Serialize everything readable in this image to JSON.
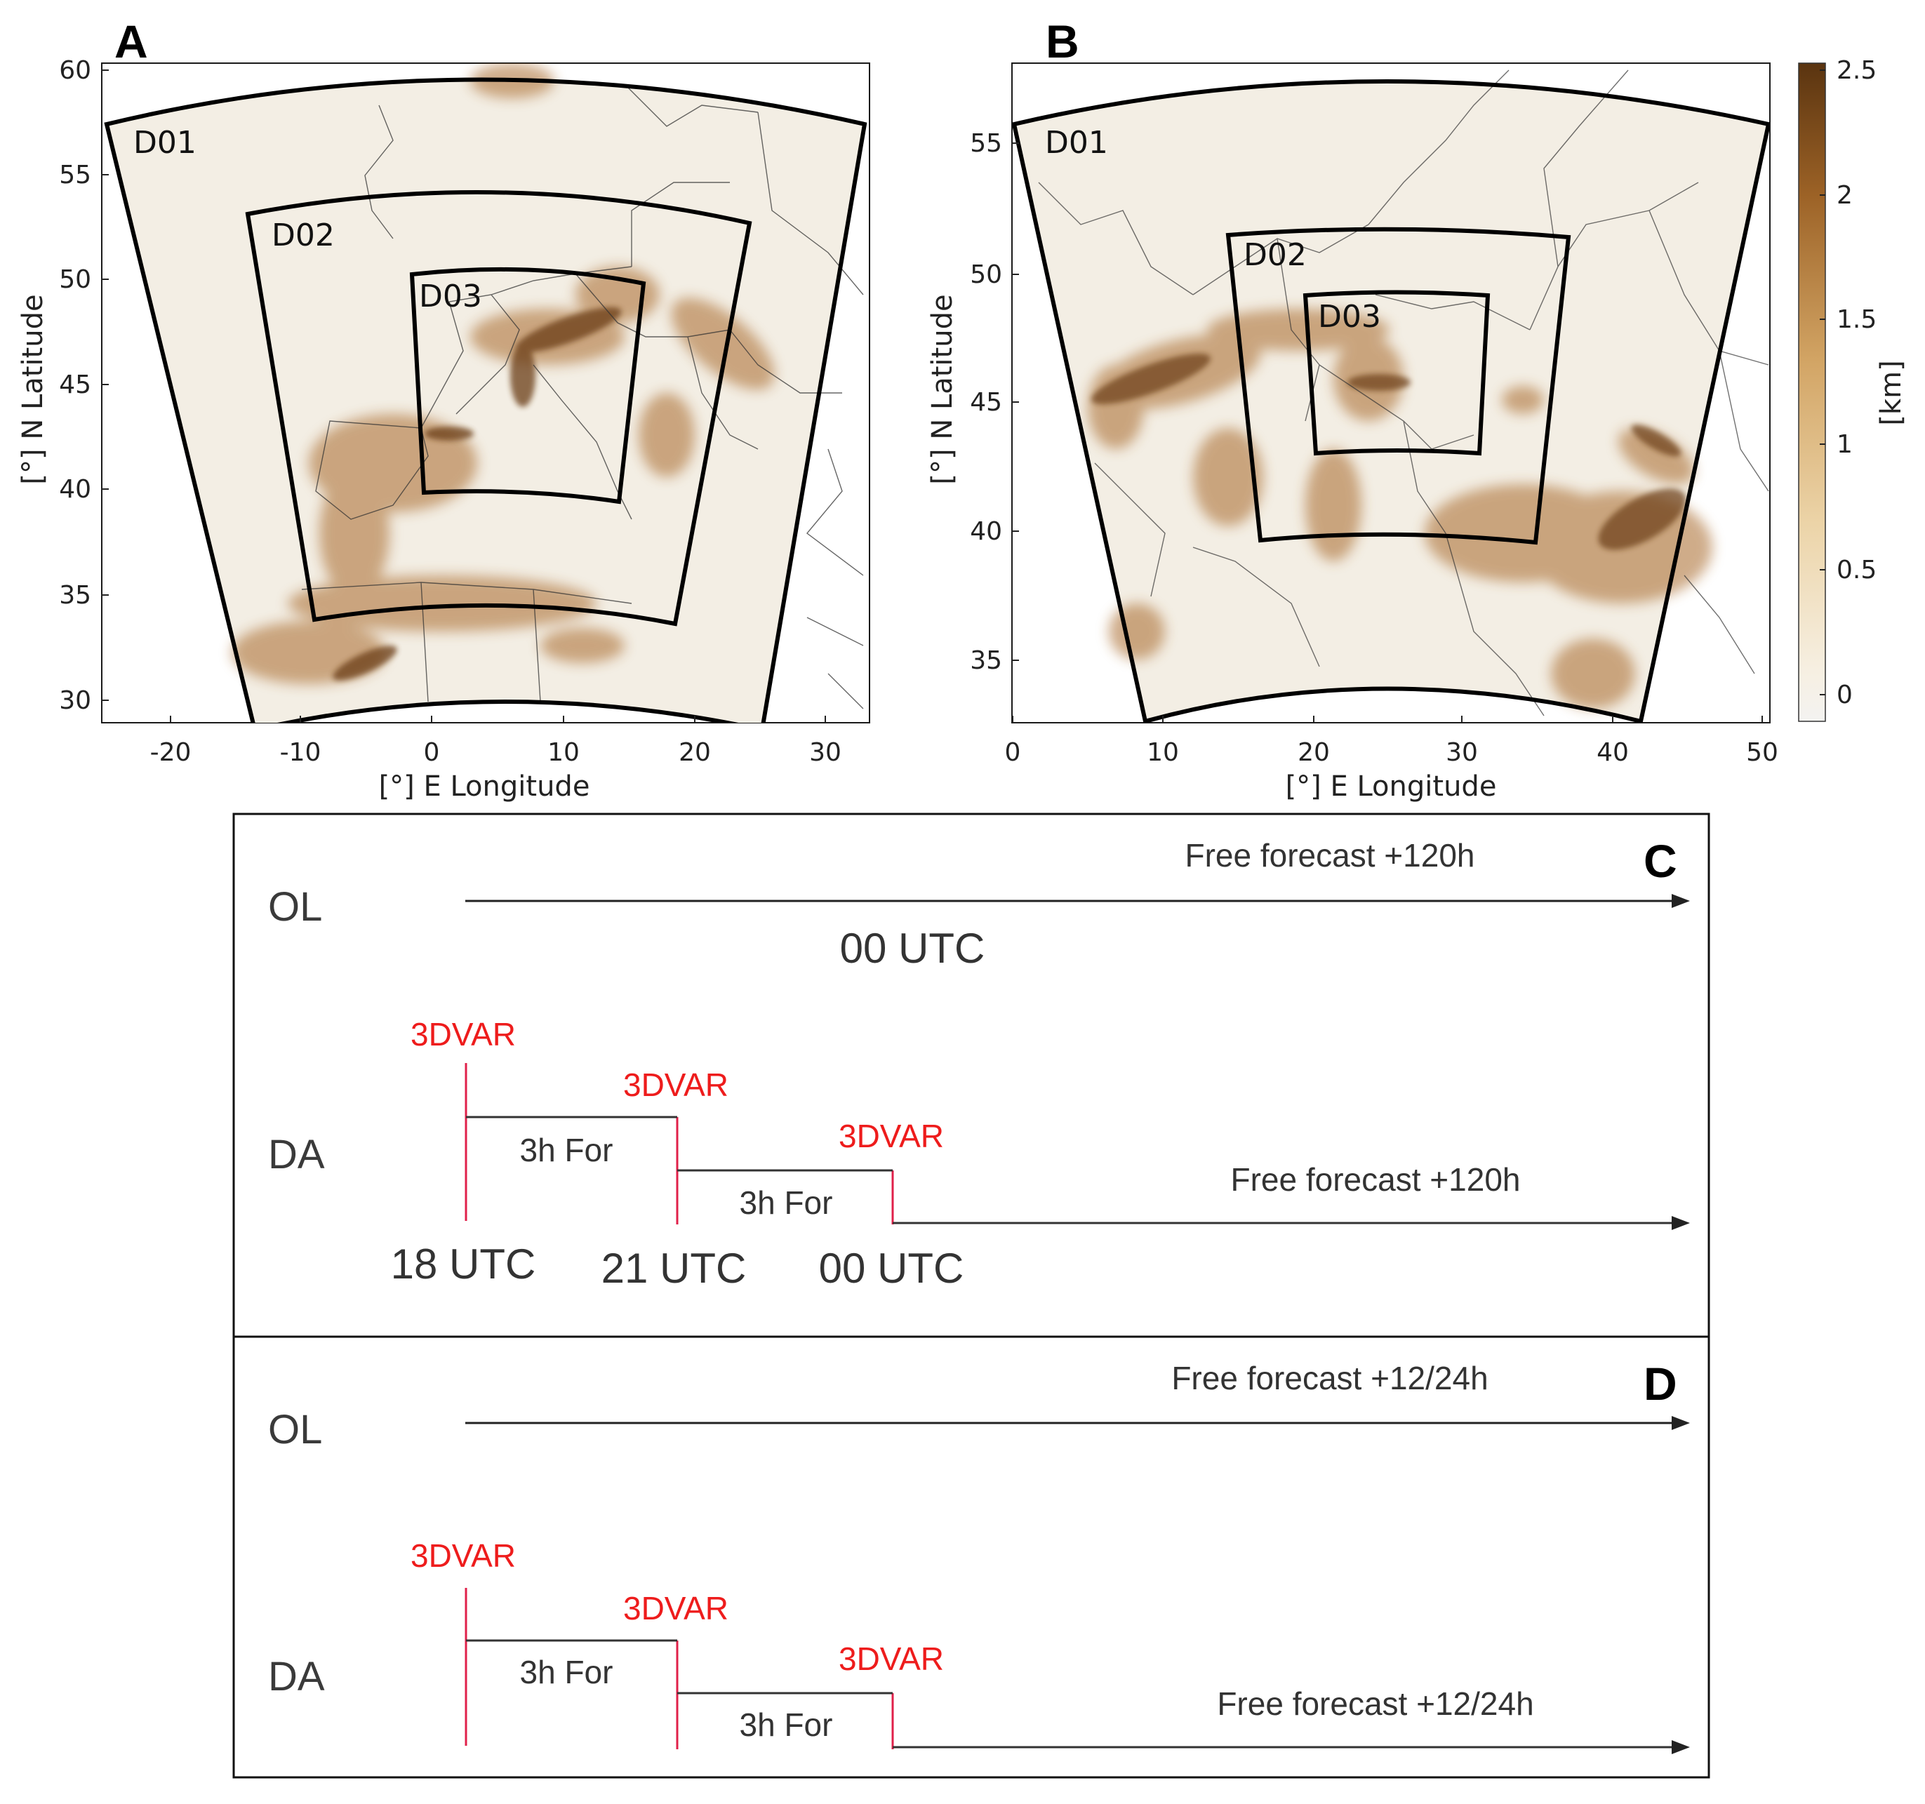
{
  "panelA": {
    "label": "A",
    "domains": [
      "D01",
      "D02",
      "D03"
    ],
    "x_ticks": [
      "-20",
      "-10",
      "0",
      "10",
      "20",
      "30"
    ],
    "y_ticks": [
      "60",
      "55",
      "50",
      "45",
      "40",
      "35",
      "30"
    ],
    "xlabel": "[°] E Longitude",
    "ylabel": "[°] N Latitude"
  },
  "panelB": {
    "label": "B",
    "domains": [
      "D01",
      "D02",
      "D03"
    ],
    "x_ticks": [
      "0",
      "10",
      "20",
      "30",
      "40",
      "50"
    ],
    "y_ticks": [
      "55",
      "50",
      "45",
      "40",
      "35"
    ],
    "xlabel": "[°] E Longitude",
    "ylabel": "[°] N Latitude"
  },
  "colorbar": {
    "ticks": [
      "2.5",
      "2",
      "1.5",
      "1",
      "0.5",
      "0"
    ],
    "unit": "[km]",
    "color_low": "#f4f1ec",
    "color_high": "#5a3410"
  },
  "panelC": {
    "label": "C",
    "ol_label": "OL",
    "da_label": "DA",
    "ol_forecast": "Free forecast +120h",
    "ol_time": "00 UTC",
    "da_forecast": "Free forecast +120h",
    "assim": [
      "3DVAR",
      "3DVAR",
      "3DVAR"
    ],
    "windows": [
      "3h For",
      "3h For"
    ],
    "times": [
      "18 UTC",
      "21 UTC",
      "00 UTC"
    ]
  },
  "panelD": {
    "label": "D",
    "ol_label": "OL",
    "da_label": "DA",
    "ol_forecast": "Free forecast +12/24h",
    "da_forecast": "Free forecast +12/24h",
    "assim": [
      "3DVAR",
      "3DVAR",
      "3DVAR"
    ],
    "windows": [
      "3h For",
      "3h For"
    ]
  },
  "colors": {
    "assim_red": "#ee1c1c",
    "terrain": "#a8692a"
  }
}
